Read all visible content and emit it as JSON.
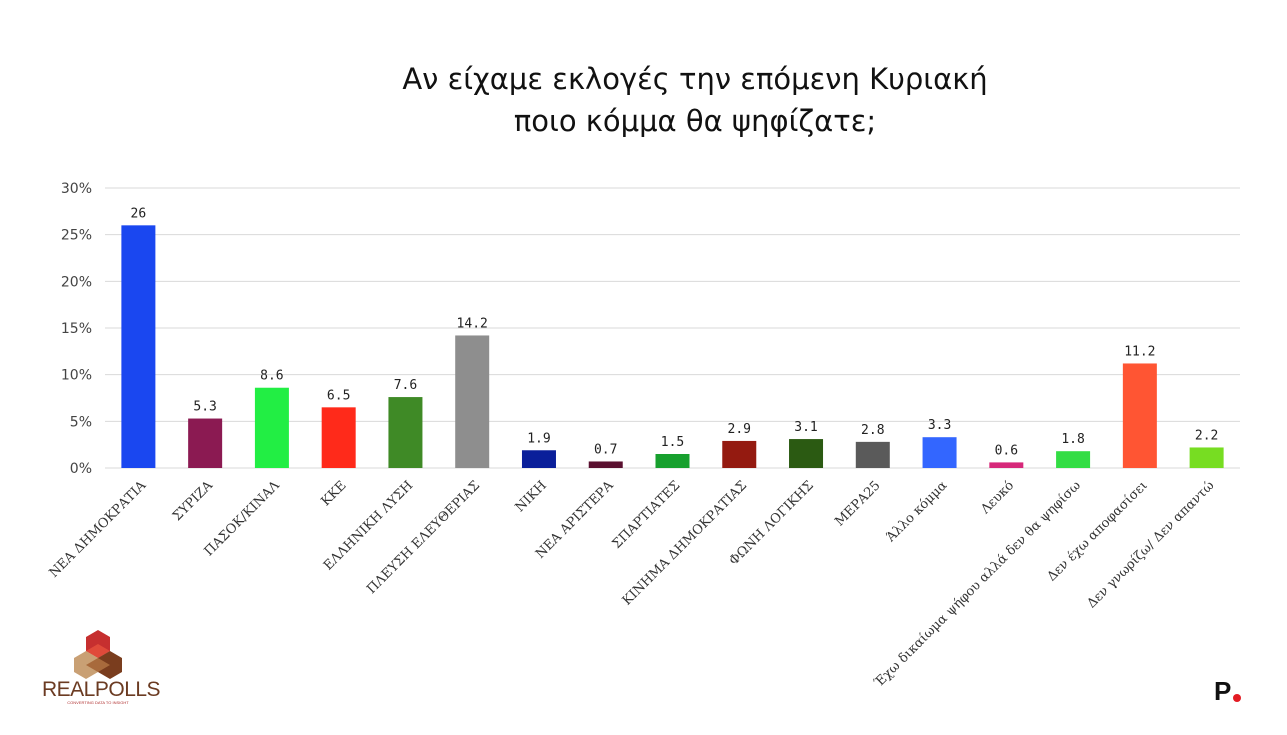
{
  "chart_data": {
    "type": "bar",
    "title_lines": [
      "Αν είχαμε εκλογές την επόμενη Κυριακή",
      "ποιο κόμμα θα ψηφίζατε;"
    ],
    "categories": [
      "ΝΕΑ ΔΗΜΟΚΡΑΤΙΑ",
      "ΣΥΡΙΖΑ",
      "ΠΑΣΟΚ/ΚΙΝΑΛ",
      "ΚΚΕ",
      "ΕΛΛΗΝΙΚΗ ΛΥΣΗ",
      "ΠΛΕΥΣΗ ΕΛΕΥΘΕΡΙΑΣ",
      "ΝΙΚΗ",
      "ΝΕΑ ΑΡΙΣΤΕΡΑ",
      "ΣΠΑΡΤΙΑΤΕΣ",
      "ΚΙΝΗΜΑ ΔΗΜΟΚΡΑΤΙΑΣ",
      "ΦΩΝΗ ΛΟΓΙΚΗΣ",
      "ΜΕΡΑ25",
      "Άλλο κόμμα",
      "Λευκό",
      "Έχω δικαίωμα ψήφου αλλά δεν θα ψηφίσω",
      "Δεν έχω αποφασίσει",
      "Δεν γνωρίζω/ Δεν απαντώ"
    ],
    "values": [
      26,
      5.3,
      8.6,
      6.5,
      7.6,
      14.2,
      1.9,
      0.7,
      1.5,
      2.9,
      3.1,
      2.8,
      3.3,
      0.6,
      1.8,
      11.2,
      2.2
    ],
    "value_labels": [
      "26",
      "5.3",
      "8.6",
      "6.5",
      "7.6",
      "14.2",
      "1.9",
      "0.7",
      "1.5",
      "2.9",
      "3.1",
      "2.8",
      "3.3",
      "0.6",
      "1.8",
      "11.2",
      "2.2"
    ],
    "colors": [
      "#1a47f0",
      "#8b1a52",
      "#22ee44",
      "#ff2a1a",
      "#3f8a26",
      "#8e8e8e",
      "#0a1f9a",
      "#5a1030",
      "#17a02e",
      "#941a10",
      "#2b5a12",
      "#5a5a5a",
      "#3366ff",
      "#d6287a",
      "#33dd44",
      "#ff5533",
      "#77dd22"
    ],
    "y_ticks": [
      0,
      5,
      10,
      15,
      20,
      25,
      30
    ],
    "y_tick_labels": [
      "0%",
      "5%",
      "10%",
      "15%",
      "20%",
      "25%",
      "30%"
    ],
    "ylim": [
      0,
      30
    ],
    "grid": true,
    "legend": false
  },
  "logo": {
    "text": "REALPOLLS",
    "tagline": "CONVERTING DATA TO INSIGHT"
  },
  "brand": {
    "letter": "P"
  }
}
